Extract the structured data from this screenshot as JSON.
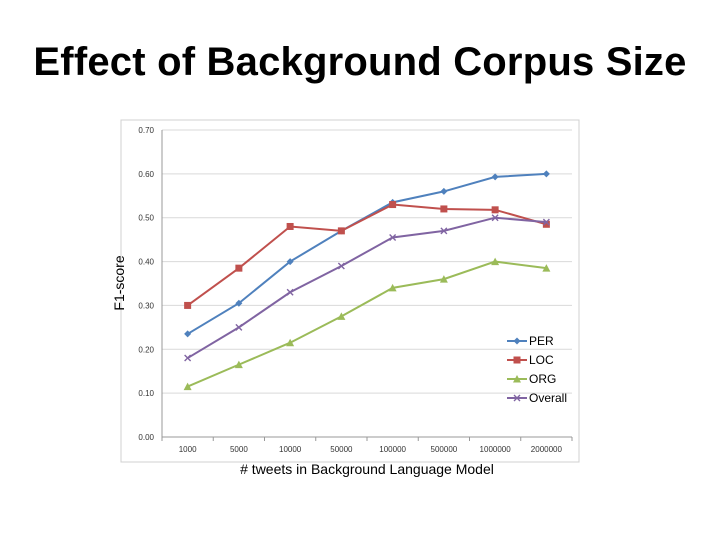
{
  "slide": {
    "title": "Effect of Background Corpus Size"
  },
  "chart_data": {
    "type": "line",
    "title": "",
    "xlabel": "# tweets in Background Language Model",
    "ylabel": "F1-score",
    "ylim": [
      0,
      0.7
    ],
    "yticks": [
      "0.00",
      "0.10",
      "0.20",
      "0.30",
      "0.40",
      "0.50",
      "0.60",
      "0.70"
    ],
    "categories": [
      "1000",
      "5000",
      "10000",
      "50000",
      "100000",
      "500000",
      "1000000",
      "2000000"
    ],
    "grid": "horizontal",
    "legend_position": "bottom-right",
    "series": [
      {
        "name": "PER",
        "color": "#4f81bd",
        "marker": "diamond",
        "values": [
          0.235,
          0.305,
          0.4,
          0.47,
          0.535,
          0.56,
          0.593,
          0.6
        ]
      },
      {
        "name": "LOC",
        "color": "#c0504d",
        "marker": "square",
        "values": [
          0.3,
          0.385,
          0.48,
          0.47,
          0.53,
          0.52,
          0.518,
          0.485
        ]
      },
      {
        "name": "ORG",
        "color": "#9bbb59",
        "marker": "triangle",
        "values": [
          0.115,
          0.165,
          0.215,
          0.275,
          0.34,
          0.36,
          0.4,
          0.385
        ]
      },
      {
        "name": "Overall",
        "color": "#8064a2",
        "marker": "x",
        "values": [
          0.18,
          0.25,
          0.33,
          0.39,
          0.455,
          0.47,
          0.5,
          0.49
        ]
      }
    ]
  }
}
